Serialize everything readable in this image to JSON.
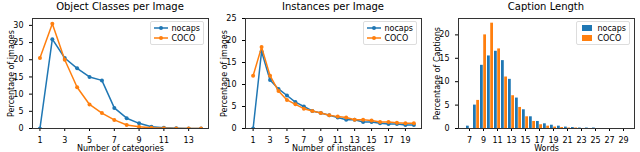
{
  "chart_data": [
    {
      "type": "line",
      "title": "Object Classes per Image",
      "x_label": "Number of categories",
      "y_label": "Percentage of images",
      "x": [
        1,
        2,
        3,
        4,
        5,
        6,
        7,
        8,
        9,
        10,
        11,
        12,
        13,
        14
      ],
      "series": [
        {
          "name": "nocaps",
          "color": "#1f77b4",
          "marker": "circle",
          "values": [
            0,
            26,
            20.5,
            17.5,
            15,
            14,
            6,
            3,
            1.5,
            0.5,
            0.2,
            0.1,
            0,
            0
          ]
        },
        {
          "name": "COCO",
          "color": "#ff7f0e",
          "marker": "circle",
          "values": [
            20.5,
            30.5,
            20,
            12,
            7,
            4.5,
            2.5,
            1,
            0.5,
            0.2,
            0.1,
            0,
            0,
            0
          ]
        }
      ],
      "xlim": [
        0.4,
        14.6
      ],
      "ylim": [
        0,
        32
      ],
      "xticks": [
        1,
        3,
        5,
        7,
        9,
        11,
        13
      ],
      "yticks": [
        0,
        5,
        10,
        15,
        20,
        25,
        30
      ],
      "legend": "upper right"
    },
    {
      "type": "line",
      "title": "Instances per Image",
      "x_label": "Number of instances",
      "y_label": "Percentage of images",
      "x": [
        1,
        2,
        3,
        4,
        5,
        6,
        7,
        8,
        9,
        10,
        11,
        12,
        13,
        14,
        15,
        16,
        17,
        18,
        19,
        20
      ],
      "series": [
        {
          "name": "nocaps",
          "color": "#1f77b4",
          "marker": "circle",
          "values": [
            0,
            17.5,
            11,
            9,
            7.5,
            6,
            5,
            4,
            3.5,
            3,
            2.5,
            2,
            2,
            1.5,
            1.5,
            1.2,
            1,
            1,
            0.8,
            0.8
          ]
        },
        {
          "name": "COCO",
          "color": "#ff7f0e",
          "marker": "circle",
          "values": [
            12,
            18.5,
            12,
            8.5,
            6.5,
            5.5,
            4.5,
            4,
            3.5,
            3,
            2.7,
            2.5,
            2,
            2,
            1.8,
            1.5,
            1.5,
            1.3,
            1.2,
            1.2
          ]
        }
      ],
      "xlim": [
        0.1,
        20.9
      ],
      "ylim": [
        0,
        25
      ],
      "xticks": [
        1,
        3,
        5,
        7,
        9,
        11,
        13,
        15,
        17,
        19
      ],
      "yticks": [
        0,
        5,
        10,
        15,
        20,
        25
      ],
      "legend": "upper right"
    },
    {
      "type": "bar",
      "title": "Caption Length",
      "x_label": "Words",
      "y_label": "Percentage of Captions",
      "categories": [
        7,
        8,
        9,
        10,
        11,
        12,
        13,
        14,
        15,
        16,
        17,
        18,
        19,
        20,
        21,
        22,
        23,
        24,
        25,
        26,
        27,
        28,
        29
      ],
      "series": [
        {
          "name": "nocaps",
          "color": "#1f77b4",
          "values": [
            0.5,
            5,
            13.5,
            15.5,
            16.5,
            14.5,
            10.5,
            6.5,
            4,
            2.5,
            1.5,
            1,
            0.7,
            0.5,
            0.3,
            0.2,
            0.1,
            0.1,
            0.1,
            0,
            0,
            0,
            0
          ]
        },
        {
          "name": "COCO",
          "color": "#ff7f0e",
          "values": [
            0,
            6,
            20,
            22.5,
            17,
            11,
            7,
            4.5,
            2.5,
            1.5,
            0.8,
            0.5,
            0.3,
            0.2,
            0.1,
            0.1,
            0,
            0,
            0,
            0,
            0,
            0,
            0
          ]
        }
      ],
      "ylim": [
        0,
        23.5
      ],
      "xticks": [
        7,
        9,
        11,
        13,
        15,
        17,
        19,
        21,
        23,
        25,
        27,
        29
      ],
      "yticks": [
        0,
        5,
        10,
        15,
        20
      ],
      "legend": "upper right"
    }
  ]
}
